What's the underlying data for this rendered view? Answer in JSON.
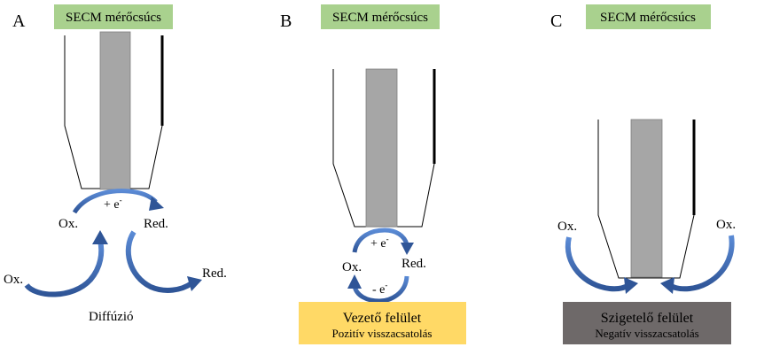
{
  "panels": [
    {
      "letter": "A",
      "tip_label": "SECM mérőcsúcs",
      "electron": "+ e",
      "electron_sup": "-",
      "ox": "Ox.",
      "red": "Red.",
      "ox_diffusion": "Ox.",
      "red_diffusion": "Red.",
      "diffusion": "Diffúzió"
    },
    {
      "letter": "B",
      "tip_label": "SECM mérőcsúcs",
      "electron_top": "+ e",
      "electron_top_sup": "-",
      "electron_bottom": "- e",
      "electron_bottom_sup": "-",
      "ox": "Ox.",
      "red": "Red.",
      "surface_title": "Vezető felület",
      "surface_subtitle": "Pozitív visszacsatolás"
    },
    {
      "letter": "C",
      "tip_label": "SECM mérőcsúcs",
      "ox_left": "Ox.",
      "ox_right": "Ox.",
      "surface_title": "Szigetelő felület",
      "surface_subtitle": "Negatív visszacsatolás"
    }
  ],
  "colors": {
    "label_bg": "#a9d18e",
    "electrode": "#a6a6a6",
    "arrow": "#4472c4",
    "conductive": "#ffd966",
    "insulating": "#6e6969"
  }
}
